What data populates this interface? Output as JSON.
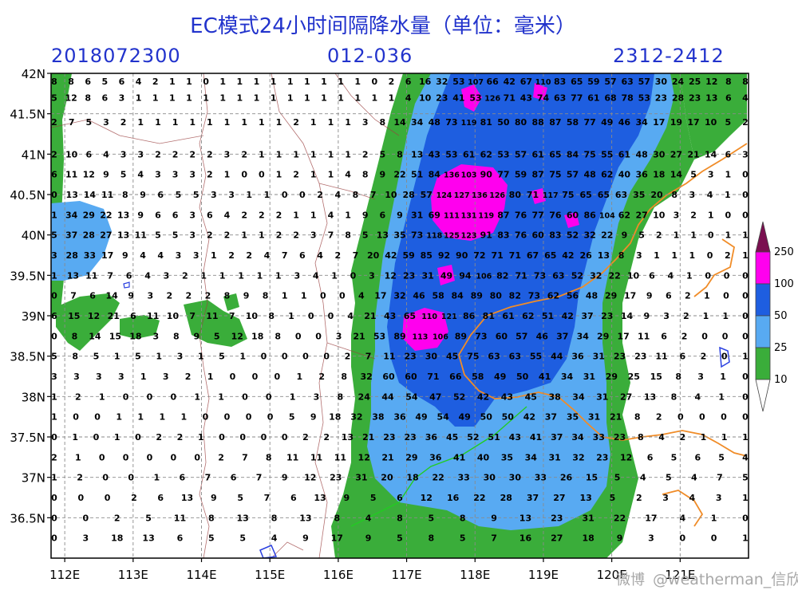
{
  "header": {
    "title": "EC模式24小时间隔降水量（单位：毫米）",
    "run_date": "2018072300",
    "forecast_range": "012-036",
    "valid_time": "2312-2412"
  },
  "map": {
    "lon_range": [
      111.8,
      122.0
    ],
    "lat_range": [
      36.0,
      42.0
    ],
    "lat_ticks": [
      "42N",
      "41.5N",
      "41N",
      "40.5N",
      "40N",
      "39.5N",
      "39N",
      "38.5N",
      "38N",
      "37.5N",
      "37N",
      "36.5N"
    ],
    "lon_ticks": [
      "112E",
      "113E",
      "114E",
      "115E",
      "116E",
      "117E",
      "118E",
      "119E",
      "120E",
      "121E"
    ]
  },
  "legend": {
    "levels": [
      "250",
      "100",
      "50",
      "25",
      "10"
    ],
    "colors": {
      "lt10": "#ffffff",
      "10-25": "#3aad3a",
      "25-50": "#58aaf2",
      "50-100": "#1e5ee0",
      "100-250": "#ff00ee",
      "gt250": "#7a1050"
    }
  },
  "station_values": {
    "41.9": "8 8 6 5 6 4 2 1 1 0 1 1 1 1 1 1 1 1 1 0 2 6 16 32 53 107 66 42 67 110 83 65 59 57 63 57 30 24 25 12 8 8",
    "41.7": "5 12 8 6 3 1 1 1 1 1 1 1 1 1 1 1 1 1 1 1 1 4 10 23 41 53 126 71 43 74 63 77 61 68 78 53 23 28 23 13 6 4",
    "41.4": "2 7 5 3 2 1 1 1 1 1 1 1 1 1 2 1 1 1 3 8 14 34 48 73 119 81 50 80 88 87 58 77 49 46 34 17 19 17 10 5 2",
    "41.0": "2 10 6 4 3 3 2 2 2 2 3 2 1 1 1 1 1 1 2 5 8 13 43 53 61 62 53 57 61 65 84 75 55 61 48 30 27 21 14 6 3",
    "40.75": "6 11 12 9 5 4 3 3 3 2 1 0 0 1 2 1 1 4 8 9 22 51 84 136 103 90 77 59 87 75 57 48 62 40 36 18 14 5 3 1 0",
    "40.5": "0 13 14 11 8 9 6 5 5 3 3 1 1 0 0 2 4 8 7 10 28 57 124 127 136 126 80 71 117 75 65 65 63 35 20 8 3 4 1 0",
    "40.25": "1 34 29 22 13 9 6 6 3 6 4 2 2 2 1 1 4 1 9 6 9 31 69 111 131 119 87 76 77 76 60 86 104 62 27 10 3 2 1 0 0",
    "40.0": "5 37 28 27 13 11 5 5 3 2 2 1 1 2 2 3 7 8 5 13 35 73 118 125 123 91 83 76 60 83 52 32 22 9 5 2 1 1 0 1 1",
    "39.75": "3 28 33 17 9 4 4 3 3 1 2 2 4 7 6 4 2 7 20 42 59 85 92 90 72 71 71 67 65 42 26 13 8 3 1 1 1 0 2 1",
    "39.5": "1 13 11 7 6 4 3 2 1 1 1 1 1 3 4 1 0 3 12 23 31 49 94 106 82 71 73 63 52 32 22 10 6 4 1 0 0 0",
    "39.25": "0 7 6 14 9 3 2 2 2 8 9 8 1 1 0 0 4 17 32 46 58 84 89 80 82 73 62 56 48 29 17 9 6 2 1 0 0",
    "39.0": "6 15 12 21 6 11 10 7 11 7 10 8 1 0 0 4 21 43 65 110 121 86 81 61 62 51 42 37 23 14 9 3 2 1 1 0",
    "38.75": "0 8 14 15 18 3 8 9 5 12 18 8 0 0 3 21 53 89 113 106 89 73 60 57 46 37 34 29 17 11 6 2 0 0 0",
    "38.5": "5 8 5 1 5 1 3 1 5 1 0 0 0 0 2 7 11 23 30 45 75 63 63 55 44 36 31 23 23 11 6 2 0 1",
    "38.25": "3 3 3 3 1 3 2 1 0 0 0 1 2 8 32 60 60 71 66 58 49 50 41 34 31 29 25 15 8 3 1 0",
    "38.0": "1 2 1 0 0 0 1 1 0 0 1 3 8 24 44 54 47 52 42 43 45 38 34 31 27 13 8 4 1 0",
    "37.75": "1 0 0 1 1 1 1 0 0 0 0 5 9 18 32 38 36 49 54 49 50 50 42 37 35 31 21 8 2 0 0 0 0",
    "37.5": "0 1 0 1 0 2 2 1 0 0 0 0 2 2 13 21 23 23 36 45 52 51 43 41 37 34 33 23 8 4 2 1 1 1",
    "37.25": "2 1 0 0 0 0 0 2 7 8 11 11 11 12 21 29 36 41 40 35 34 31 32 23 12 6 5 6 5 4",
    "37.0": "1 2 0 0 1 6 7 6 7 9 12 23 31 20 18 22 33 30 30 33 26 15 5 4 5 4 7 5",
    "36.75": "0 0 0 2 6 13 9 5 7 6 13 9 5 6 12 16 22 28 37 27 13 5 2 3 4 3 1",
    "36.5": "0 0 2 5 11 8 13 8 13 8 4 8 5 8 9 13 23 31 22 17 4 1 0",
    "36.25": "0 3 18 13 6 5 5 4 9 17 9 5 8 5 7 16 27 18 9 3 0 0 1"
  },
  "watermark": {
    "weibo": "微博",
    "handle": "@weatherman_信欣"
  }
}
